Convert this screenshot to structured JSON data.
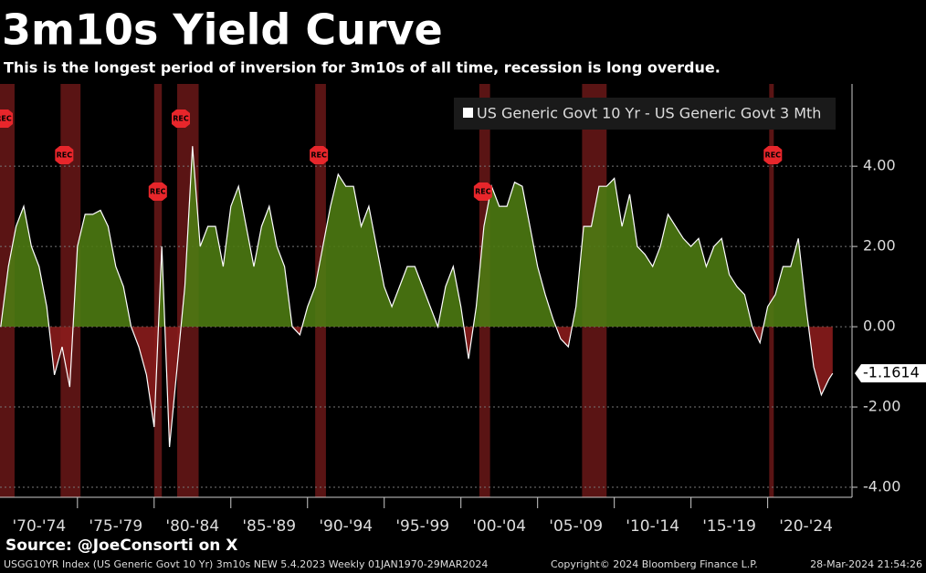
{
  "chart_data": {
    "type": "area",
    "title": "3m10s Yield Curve",
    "subtitle": "This is the longest period of inversion for 3m10s of all time, recession is long overdue.",
    "source": "Source: @JoeConsorti on X",
    "footer_left": "USGG10YR Index (US Generic Govt 10 Yr) 3m10s NEW 5.4.2023  Weekly 01JAN1970-29MAR2024",
    "footer_center": "Copyright© 2024 Bloomberg Finance L.P.",
    "footer_right": "28-Mar-2024 21:54:26",
    "x": [
      1970,
      1970.5,
      1971,
      1971.5,
      1972,
      1972.5,
      1973,
      1973.5,
      1974,
      1974.5,
      1975,
      1975.5,
      1976,
      1976.5,
      1977,
      1977.5,
      1978,
      1978.5,
      1979,
      1979.5,
      1980,
      1980.5,
      1981,
      1981.5,
      1982,
      1982.5,
      1983,
      1983.5,
      1984,
      1984.5,
      1985,
      1985.5,
      1986,
      1986.5,
      1987,
      1987.5,
      1988,
      1988.5,
      1989,
      1989.5,
      1990,
      1990.5,
      1991,
      1991.5,
      1992,
      1992.5,
      1993,
      1993.5,
      1994,
      1994.5,
      1995,
      1995.5,
      1996,
      1996.5,
      1997,
      1997.5,
      1998,
      1998.5,
      1999,
      1999.5,
      2000,
      2000.5,
      2001,
      2001.5,
      2002,
      2002.5,
      2003,
      2003.5,
      2004,
      2004.5,
      2005,
      2005.5,
      2006,
      2006.5,
      2007,
      2007.5,
      2008,
      2008.5,
      2009,
      2009.5,
      2010,
      2010.5,
      2011,
      2011.5,
      2012,
      2012.5,
      2013,
      2013.5,
      2014,
      2014.5,
      2015,
      2015.5,
      2016,
      2016.5,
      2017,
      2017.5,
      2018,
      2018.5,
      2019,
      2019.5,
      2020,
      2020.5,
      2021,
      2021.5,
      2022,
      2022.5,
      2023,
      2023.5,
      2024,
      2024.24
    ],
    "series": [
      {
        "name": "US Generic Govt 10 Yr - US Generic Govt 3 Mth",
        "color": "#ffffff",
        "values": [
          0.0,
          1.5,
          2.5,
          3.0,
          2.0,
          1.5,
          0.5,
          -1.2,
          -0.5,
          -1.5,
          2.0,
          2.8,
          2.8,
          2.9,
          2.5,
          1.5,
          1.0,
          0.0,
          -0.5,
          -1.2,
          -2.5,
          2.0,
          -3.0,
          -1.0,
          1.0,
          4.5,
          2.0,
          2.5,
          2.5,
          1.5,
          3.0,
          3.5,
          2.5,
          1.5,
          2.5,
          3.0,
          2.0,
          1.5,
          0.0,
          -0.2,
          0.5,
          1.0,
          2.0,
          3.0,
          3.8,
          3.5,
          3.5,
          2.5,
          3.0,
          2.0,
          1.0,
          0.5,
          1.0,
          1.5,
          1.5,
          1.0,
          0.5,
          0.0,
          1.0,
          1.5,
          0.5,
          -0.8,
          0.5,
          2.5,
          3.5,
          3.0,
          3.0,
          3.6,
          3.5,
          2.5,
          1.5,
          0.8,
          0.2,
          -0.3,
          -0.5,
          0.5,
          2.5,
          2.5,
          3.5,
          3.5,
          3.7,
          2.5,
          3.3,
          2.0,
          1.8,
          1.5,
          2.0,
          2.8,
          2.5,
          2.2,
          2.0,
          2.2,
          1.5,
          2.0,
          2.2,
          1.3,
          1.0,
          0.8,
          0.0,
          -0.4,
          0.5,
          0.8,
          1.5,
          1.5,
          2.2,
          0.5,
          -1.0,
          -1.7,
          -1.3,
          -1.1614
        ]
      }
    ],
    "positive_color": "#4d7a12",
    "negative_color": "#8a1c1c",
    "recession_color": "#5a1414",
    "recession_label": "REC",
    "recessions": [
      [
        1969.95,
        1970.9
      ],
      [
        1973.9,
        1975.2
      ],
      [
        1980.0,
        1980.5
      ],
      [
        1981.5,
        1982.9
      ],
      [
        1990.5,
        1991.2
      ],
      [
        2001.2,
        2001.9
      ],
      [
        2007.9,
        2009.5
      ],
      [
        2020.1,
        2020.4
      ]
    ],
    "xlim": [
      1969.95,
      2025.5
    ],
    "xticks": [
      {
        "value": 1972.5,
        "label": "'70-'74"
      },
      {
        "value": 1977.5,
        "label": "'75-'79"
      },
      {
        "value": 1982.5,
        "label": "'80-'84"
      },
      {
        "value": 1987.5,
        "label": "'85-'89"
      },
      {
        "value": 1992.5,
        "label": "'90-'94"
      },
      {
        "value": 1997.5,
        "label": "'95-'99"
      },
      {
        "value": 2002.5,
        "label": "'00-'04"
      },
      {
        "value": 2007.5,
        "label": "'05-'09"
      },
      {
        "value": 2012.5,
        "label": "'10-'14"
      },
      {
        "value": 2017.5,
        "label": "'15-'19"
      },
      {
        "value": 2022.5,
        "label": "'20-'24"
      }
    ],
    "ylim": [
      -4.25,
      6.05
    ],
    "yticks": [
      {
        "value": 4,
        "label": "4.00"
      },
      {
        "value": 2,
        "label": "2.00"
      },
      {
        "value": 0,
        "label": "0.00"
      },
      {
        "value": -2,
        "label": "-2.00"
      },
      {
        "value": -4,
        "label": "-4.00"
      }
    ],
    "grid": true
  }
}
